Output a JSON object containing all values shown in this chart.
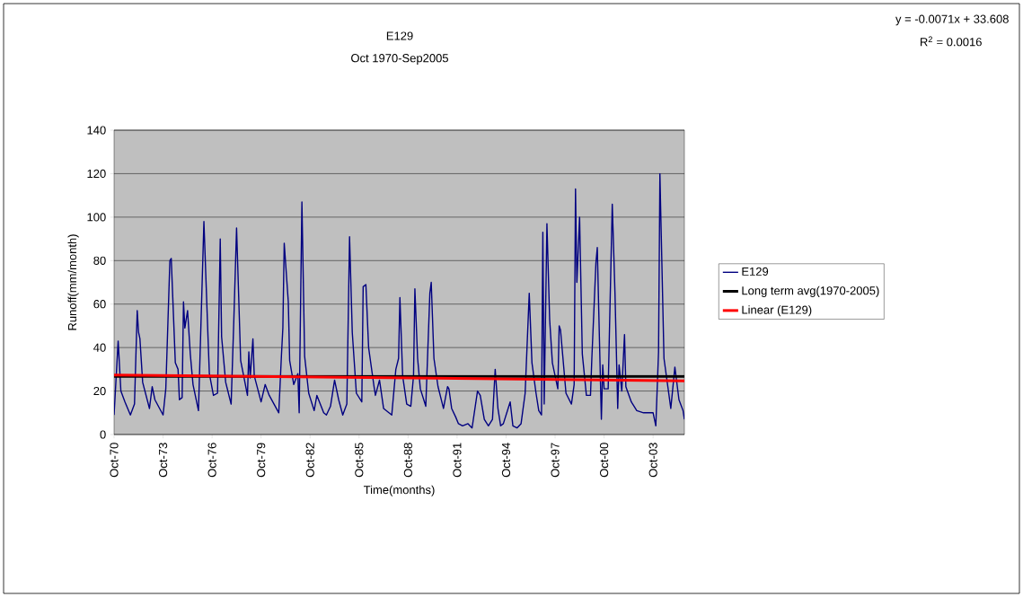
{
  "chart_data": {
    "type": "line",
    "title": "E129",
    "subtitle": "Oct 1970-Sep2005",
    "xlabel": "Time(months)",
    "ylabel": "Runoff(mm/month)",
    "annotations": [
      "y = -0.0071x + 33.608",
      "R$^{2}$ = 0.0016"
    ],
    "xlim": [
      "1970-10",
      "2005-09"
    ],
    "xticks": [
      {
        "value": "1970-10",
        "label": "Oct-70"
      },
      {
        "value": "1973-10",
        "label": "Oct-73"
      },
      {
        "value": "1976-10",
        "label": "Oct-76"
      },
      {
        "value": "1979-10",
        "label": "Oct-79"
      },
      {
        "value": "1982-10",
        "label": "Oct-82"
      },
      {
        "value": "1985-10",
        "label": "Oct-85"
      },
      {
        "value": "1988-10",
        "label": "Oct-88"
      },
      {
        "value": "1991-10",
        "label": "Oct-91"
      },
      {
        "value": "1994-10",
        "label": "Oct-94"
      },
      {
        "value": "1997-10",
        "label": "Oct-97"
      },
      {
        "value": "2000-10",
        "label": "Oct-00"
      },
      {
        "value": "2003-10",
        "label": "Oct-03"
      }
    ],
    "ylim": [
      0,
      140
    ],
    "yticks": [
      0,
      20,
      40,
      60,
      80,
      100,
      120,
      140
    ],
    "grid": "y",
    "legend": "right",
    "series": [
      {
        "name": "E129",
        "color": "#000080",
        "x": [
          "1970-10",
          "1971-01",
          "1971-03",
          "1971-06",
          "1971-10",
          "1972-01",
          "1972-03",
          "1972-04",
          "1972-05",
          "1972-07",
          "1972-12",
          "1973-02",
          "1973-04",
          "1973-10",
          "1973-12",
          "1974-03",
          "1974-04",
          "1974-07",
          "1974-09",
          "1974-10",
          "1974-12",
          "1975-01",
          "1975-02",
          "1975-04",
          "1975-06",
          "1975-08",
          "1975-12",
          "1976-04",
          "1976-07",
          "1976-08",
          "1976-11",
          "1977-02",
          "1977-04",
          "1977-05",
          "1977-08",
          "1977-12",
          "1978-02",
          "1978-04",
          "1978-07",
          "1978-12",
          "1979-01",
          "1979-02",
          "1979-04",
          "1979-05",
          "1979-10",
          "1980-01",
          "1980-04",
          "1980-11",
          "1981-01",
          "1981-02",
          "1981-03",
          "1981-06",
          "1981-07",
          "1981-10",
          "1982-01",
          "1982-02",
          "1982-04",
          "1982-06",
          "1982-09",
          "1983-01",
          "1983-03",
          "1983-08",
          "1983-10",
          "1984-01",
          "1984-04",
          "1984-07",
          "1984-10",
          "1985-01",
          "1985-03",
          "1985-05",
          "1985-08",
          "1985-12",
          "1986-01",
          "1986-03",
          "1986-05",
          "1986-09",
          "1986-10",
          "1987-01",
          "1987-04",
          "1987-10",
          "1988-01",
          "1988-03",
          "1988-04",
          "1988-06",
          "1988-09",
          "1988-12",
          "1989-02",
          "1989-03",
          "1989-05",
          "1989-07",
          "1989-11",
          "1990-02",
          "1990-03",
          "1990-05",
          "1990-08",
          "1990-12",
          "1991-03",
          "1991-04",
          "1991-06",
          "1991-09",
          "1991-11",
          "1992-02",
          "1992-06",
          "1992-09",
          "1993-01",
          "1993-03",
          "1993-06",
          "1993-09",
          "1993-12",
          "1994-02",
          "1994-04",
          "1994-06",
          "1994-08",
          "1995-01",
          "1995-03",
          "1995-06",
          "1995-09",
          "1995-12",
          "1996-03",
          "1996-05",
          "1996-08",
          "1996-10",
          "1996-12",
          "1997-01",
          "1997-02",
          "1997-04",
          "1997-06",
          "1997-08",
          "1997-12",
          "1998-01",
          "1998-02",
          "1998-06",
          "1998-10",
          "1998-12",
          "1999-01",
          "1999-02",
          "1999-04",
          "1999-06",
          "1999-09",
          "1999-12",
          "2000-01",
          "2000-04",
          "2000-05",
          "2000-06",
          "2000-08",
          "2000-09",
          "2000-10",
          "2001-01",
          "2001-04",
          "2001-06",
          "2001-08",
          "2001-09",
          "2001-11",
          "2002-01",
          "2002-02",
          "2002-06",
          "2002-10",
          "2003-03",
          "2003-10",
          "2003-12",
          "2004-02",
          "2004-03",
          "2004-06",
          "2004-11",
          "2005-02",
          "2005-05",
          "2005-08",
          "2005-09"
        ],
        "values": [
          9,
          43,
          20,
          15,
          9,
          14,
          57,
          47,
          44,
          24,
          12,
          22,
          16,
          9,
          21,
          80,
          81,
          33,
          30,
          16,
          17,
          61,
          49,
          57,
          37,
          23,
          11,
          98,
          45,
          28,
          18,
          19,
          90,
          45,
          24,
          14,
          53,
          95,
          34,
          18,
          38,
          26,
          44,
          27,
          15,
          23,
          18,
          10,
          37,
          49,
          88,
          61,
          34,
          23,
          28,
          10,
          107,
          36,
          19,
          11,
          18,
          10,
          9,
          13,
          25,
          16,
          9,
          14,
          91,
          47,
          19,
          15,
          68,
          69,
          40,
          22,
          18,
          25,
          12,
          9,
          30,
          35,
          63,
          27,
          14,
          13,
          27,
          67,
          35,
          21,
          13,
          65,
          70,
          35,
          22,
          12,
          22,
          21,
          12,
          8,
          5,
          4,
          5,
          3,
          20,
          18,
          7,
          4,
          7,
          30,
          12,
          4,
          5,
          15,
          4,
          3,
          5,
          19,
          65,
          33,
          19,
          11,
          9,
          93,
          14,
          97,
          53,
          33,
          21,
          50,
          48,
          19,
          14,
          23,
          113,
          70,
          100,
          37,
          18,
          18,
          35,
          79,
          86,
          59,
          7,
          32,
          21,
          21,
          106,
          65,
          12,
          32,
          20,
          46,
          22,
          15,
          11,
          10,
          10,
          4,
          38,
          120,
          35,
          12,
          31,
          16,
          11,
          7
        ]
      },
      {
        "name": "Long term avg(1970-2005)",
        "color": "#000000",
        "x": [
          "1970-10",
          "2005-09"
        ],
        "values": [
          26.7,
          26.7
        ]
      },
      {
        "name": "Linear (E129)",
        "color": "#ff0000",
        "x": [
          "1970-10",
          "2005-09"
        ],
        "values": [
          27.4,
          24.7
        ]
      }
    ]
  }
}
